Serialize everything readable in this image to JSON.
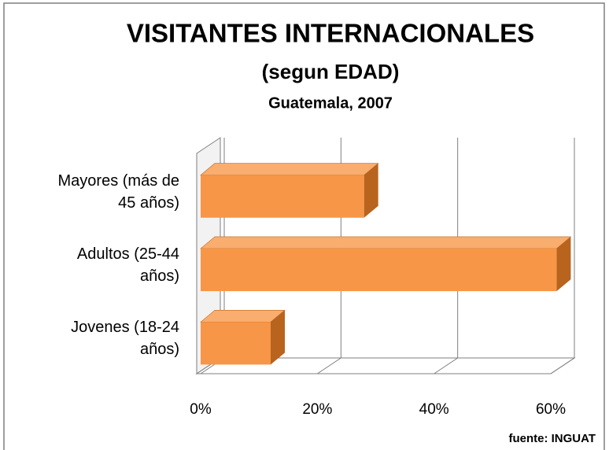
{
  "chart_data": {
    "type": "bar",
    "orientation": "horizontal",
    "three_d": true,
    "title": "VISITANTES INTERNACIONALES",
    "subtitle": "(segun EDAD)",
    "subtitle2": "Guatemala, 2007",
    "source": "fuente: INGUAT",
    "categories": [
      "Mayores (más de 45 años)",
      "Adultos (25-44 años)",
      "Jovenes (18-24 años)"
    ],
    "values": [
      28,
      61,
      12
    ],
    "color": "#f79646",
    "xlim": [
      0,
      60
    ],
    "xticks": [
      {
        "value": 0,
        "label": "0%"
      },
      {
        "value": 20,
        "label": "20%"
      },
      {
        "value": 40,
        "label": "40%"
      },
      {
        "value": 60,
        "label": "60%"
      }
    ],
    "grid": true
  }
}
